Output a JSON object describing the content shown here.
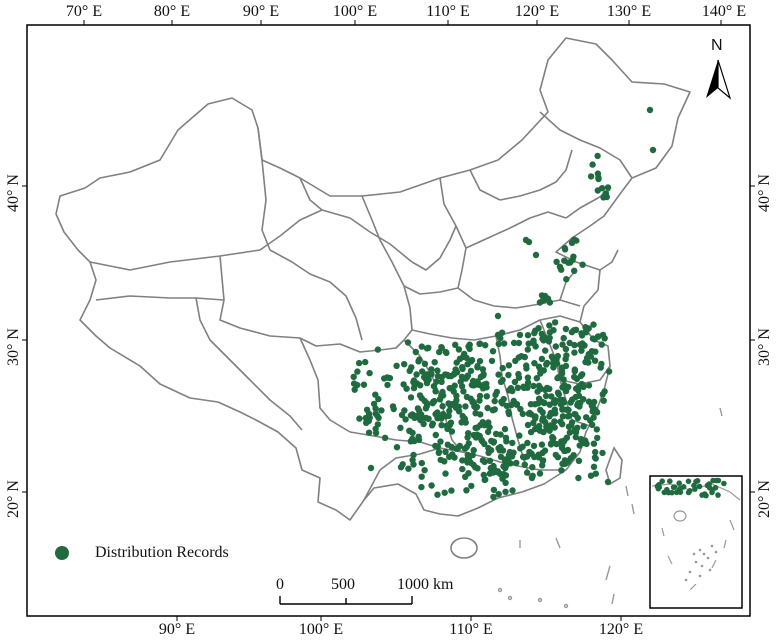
{
  "top_ticks": [
    "70° E",
    "80° E",
    "90° E",
    "100° E",
    "110° E",
    "120° E",
    "130° E",
    "140° E"
  ],
  "bottom_ticks": [
    "90° E",
    "100° E",
    "110° E",
    "120° E"
  ],
  "left_ticks": [
    "40° N",
    "30° N",
    "20° N"
  ],
  "right_ticks": [
    "40° N",
    "30° N",
    "20° N"
  ],
  "north_label": "N",
  "legend": {
    "label": "Distribution Records",
    "color": "#1f6b3f"
  },
  "scale_bar": {
    "labels": [
      "0",
      "500",
      "1000 km"
    ]
  },
  "colors": {
    "border": "#808080",
    "point": "#1f6b3f",
    "frame": "#000000"
  }
}
